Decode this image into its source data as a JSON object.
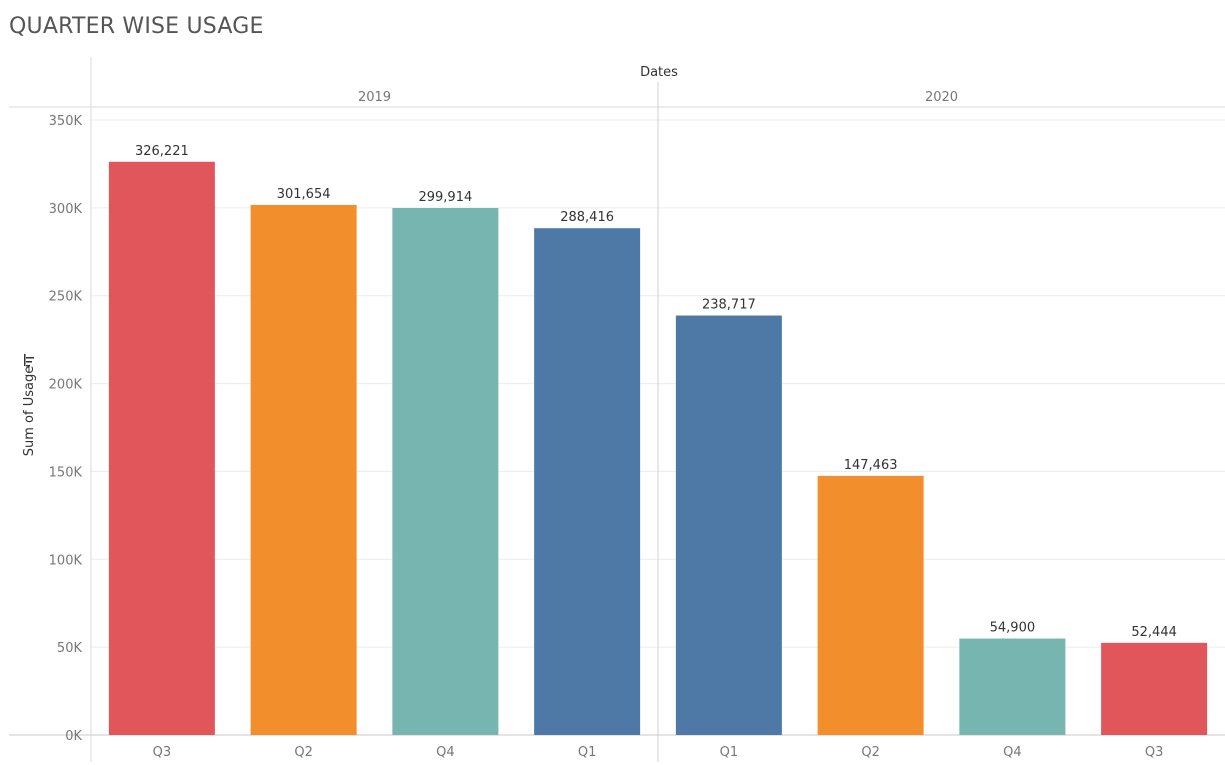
{
  "title": "QUARTER WISE USAGE",
  "chart_data": {
    "type": "bar",
    "title": "QUARTER WISE USAGE",
    "column_header": "Dates",
    "ylabel": "Sum of Usage",
    "ylim": [
      0,
      350000
    ],
    "yticks": [
      0,
      50000,
      100000,
      150000,
      200000,
      250000,
      300000,
      350000
    ],
    "ytick_labels": [
      "0K",
      "50K",
      "100K",
      "150K",
      "200K",
      "250K",
      "300K",
      "350K"
    ],
    "grid": true,
    "sort_icon": "sort-descending-icon",
    "groups": [
      {
        "label": "2019",
        "categories": [
          "Q3",
          "Q2",
          "Q4",
          "Q1"
        ],
        "values": [
          326221,
          301654,
          299914,
          288416
        ],
        "value_labels": [
          "326,221",
          "301,654",
          "299,914",
          "288,416"
        ],
        "colors": [
          "#e0565b",
          "#f28e2b",
          "#76b5b0",
          "#4e79a7"
        ]
      },
      {
        "label": "2020",
        "categories": [
          "Q1",
          "Q2",
          "Q4",
          "Q3"
        ],
        "values": [
          238717,
          147463,
          54900,
          52444
        ],
        "value_labels": [
          "238,717",
          "147,463",
          "54,900",
          "52,444"
        ],
        "colors": [
          "#4e79a7",
          "#f28e2b",
          "#76b5b0",
          "#e0565b"
        ]
      }
    ]
  }
}
